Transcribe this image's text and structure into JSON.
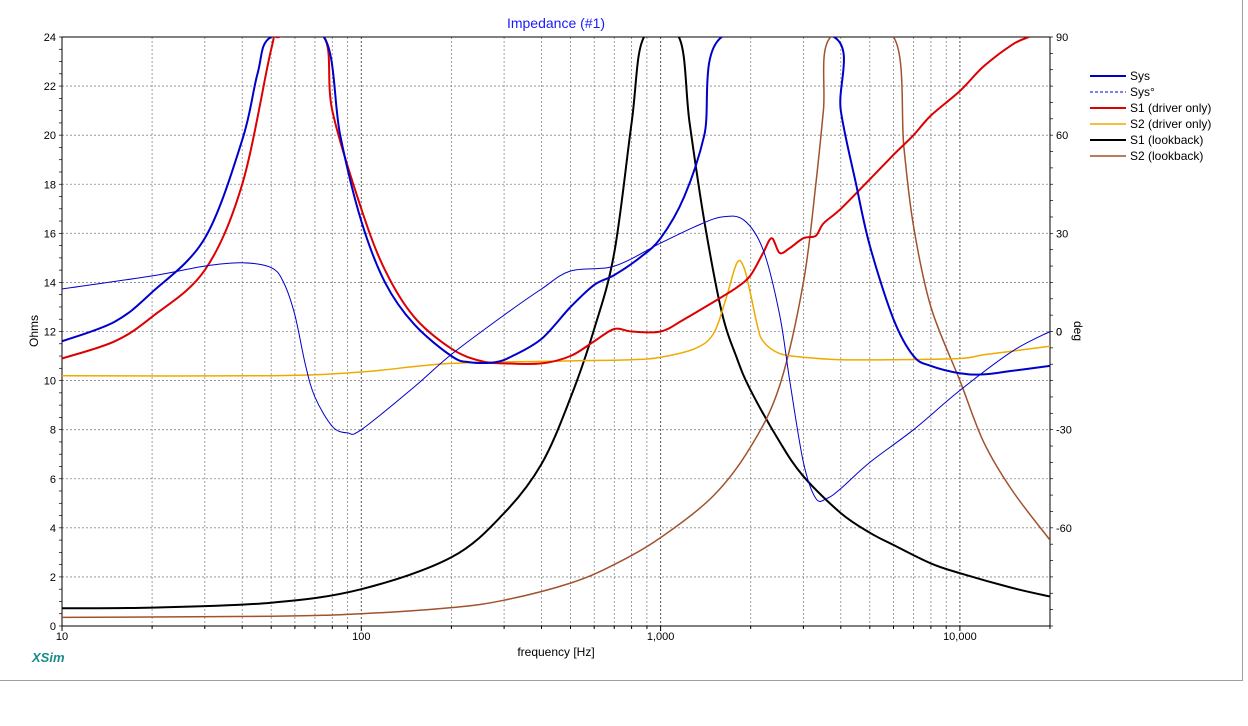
{
  "chart_data": {
    "type": "line",
    "title": "Impedance (#1)",
    "xlabel": "frequency [Hz]",
    "ylabel": "Ohms",
    "y2label": "deg",
    "xscale": "log",
    "xlim": [
      10,
      20000
    ],
    "ylim": [
      0,
      24
    ],
    "y2lim": [
      -90,
      90
    ],
    "x_ticks": [
      10,
      100,
      1000,
      10000
    ],
    "x_tick_labels": [
      "10",
      "100",
      "1,000",
      "10,000"
    ],
    "y_ticks": [
      0,
      2,
      4,
      6,
      8,
      10,
      12,
      14,
      16,
      18,
      20,
      22,
      24
    ],
    "y2_ticks": [
      -60,
      -30,
      0,
      30,
      60,
      90
    ],
    "grid": true,
    "legend_position": "right",
    "brand": "XSim",
    "series": [
      {
        "name": "Sys",
        "axis": "left",
        "color": "#0000cc",
        "width": 2,
        "dash": false,
        "points": [
          [
            10,
            11.6
          ],
          [
            15,
            12.4
          ],
          [
            20,
            13.6
          ],
          [
            30,
            15.8
          ],
          [
            40,
            19.8
          ],
          [
            45,
            22.5
          ],
          [
            50,
            24
          ],
          [
            75,
            24
          ],
          [
            85,
            20
          ],
          [
            100,
            16.5
          ],
          [
            120,
            14
          ],
          [
            150,
            12.3
          ],
          [
            200,
            11
          ],
          [
            230,
            10.75
          ],
          [
            280,
            10.75
          ],
          [
            320,
            11
          ],
          [
            400,
            11.7
          ],
          [
            500,
            13
          ],
          [
            600,
            13.9
          ],
          [
            700,
            14.3
          ],
          [
            850,
            15
          ],
          [
            1000,
            15.8
          ],
          [
            1200,
            17.5
          ],
          [
            1400,
            20
          ],
          [
            1600,
            24
          ],
          [
            3800,
            24
          ],
          [
            4000,
            21
          ],
          [
            4500,
            18
          ],
          [
            5000,
            15.5
          ],
          [
            6000,
            12.5
          ],
          [
            7000,
            11
          ],
          [
            8000,
            10.6
          ],
          [
            10000,
            10.3
          ],
          [
            12000,
            10.25
          ],
          [
            15000,
            10.4
          ],
          [
            20000,
            10.6
          ]
        ]
      },
      {
        "name": "Sys°",
        "axis": "right",
        "color": "#0000cc",
        "width": 1,
        "dash": false,
        "points": [
          [
            10,
            13
          ],
          [
            20,
            17
          ],
          [
            30,
            20
          ],
          [
            40,
            21
          ],
          [
            50,
            19.5
          ],
          [
            55,
            15
          ],
          [
            60,
            5
          ],
          [
            65,
            -10
          ],
          [
            70,
            -20
          ],
          [
            80,
            -29
          ],
          [
            90,
            -31
          ],
          [
            100,
            -30
          ],
          [
            150,
            -17
          ],
          [
            200,
            -7
          ],
          [
            300,
            5
          ],
          [
            400,
            13
          ],
          [
            500,
            18.5
          ],
          [
            700,
            20
          ],
          [
            1000,
            27
          ],
          [
            1300,
            32
          ],
          [
            1600,
            35
          ],
          [
            1900,
            34
          ],
          [
            2200,
            25
          ],
          [
            2500,
            5
          ],
          [
            2700,
            -15
          ],
          [
            3000,
            -40
          ],
          [
            3300,
            -51
          ],
          [
            3600,
            -51
          ],
          [
            4000,
            -48
          ],
          [
            5000,
            -40
          ],
          [
            7000,
            -30
          ],
          [
            10000,
            -18
          ],
          [
            15000,
            -6
          ],
          [
            20000,
            0
          ]
        ]
      },
      {
        "name": "S1 (driver only)",
        "axis": "left",
        "color": "#dd0000",
        "width": 2,
        "dash": false,
        "points": [
          [
            10,
            10.9
          ],
          [
            15,
            11.6
          ],
          [
            20,
            12.6
          ],
          [
            30,
            14.5
          ],
          [
            40,
            18
          ],
          [
            50,
            23.5
          ],
          [
            53,
            24
          ],
          [
            75,
            24
          ],
          [
            80,
            21
          ],
          [
            100,
            17
          ],
          [
            120,
            14.5
          ],
          [
            150,
            12.6
          ],
          [
            200,
            11.3
          ],
          [
            250,
            10.8
          ],
          [
            300,
            10.7
          ],
          [
            400,
            10.7
          ],
          [
            500,
            11
          ],
          [
            600,
            11.6
          ],
          [
            700,
            12.1
          ],
          [
            800,
            12
          ],
          [
            1000,
            12
          ],
          [
            1200,
            12.5
          ],
          [
            1500,
            13.2
          ],
          [
            1800,
            13.8
          ],
          [
            2000,
            14.3
          ],
          [
            2200,
            15.2
          ],
          [
            2350,
            15.8
          ],
          [
            2500,
            15.2
          ],
          [
            2700,
            15.4
          ],
          [
            3000,
            15.8
          ],
          [
            3300,
            15.9
          ],
          [
            3500,
            16.4
          ],
          [
            4000,
            17
          ],
          [
            5000,
            18.2
          ],
          [
            6000,
            19.2
          ],
          [
            7000,
            20
          ],
          [
            8000,
            20.8
          ],
          [
            10000,
            21.8
          ],
          [
            12000,
            22.8
          ],
          [
            15000,
            23.7
          ],
          [
            17000,
            24
          ]
        ]
      },
      {
        "name": "S2 (driver only)",
        "axis": "left",
        "color": "#eeaa00",
        "width": 1.5,
        "dash": false,
        "points": [
          [
            10,
            10.2
          ],
          [
            50,
            10.2
          ],
          [
            100,
            10.35
          ],
          [
            200,
            10.7
          ],
          [
            500,
            10.8
          ],
          [
            800,
            10.85
          ],
          [
            1000,
            10.95
          ],
          [
            1300,
            11.3
          ],
          [
            1500,
            11.9
          ],
          [
            1650,
            13.3
          ],
          [
            1800,
            14.8
          ],
          [
            1900,
            14.6
          ],
          [
            2000,
            13.5
          ],
          [
            2100,
            12.3
          ],
          [
            2200,
            11.6
          ],
          [
            2500,
            11.1
          ],
          [
            3000,
            10.95
          ],
          [
            4000,
            10.85
          ],
          [
            6000,
            10.85
          ],
          [
            10000,
            10.9
          ],
          [
            12000,
            11.05
          ],
          [
            15000,
            11.2
          ],
          [
            20000,
            11.4
          ]
        ]
      },
      {
        "name": "S1 (lookback)",
        "axis": "left",
        "color": "#000000",
        "width": 2,
        "dash": false,
        "points": [
          [
            10,
            0.72
          ],
          [
            20,
            0.75
          ],
          [
            50,
            0.95
          ],
          [
            100,
            1.5
          ],
          [
            200,
            2.8
          ],
          [
            300,
            4.6
          ],
          [
            400,
            6.6
          ],
          [
            500,
            9.3
          ],
          [
            600,
            12.1
          ],
          [
            700,
            15.2
          ],
          [
            800,
            20.5
          ],
          [
            880,
            24
          ],
          [
            1150,
            24
          ],
          [
            1250,
            20.5
          ],
          [
            1400,
            16.5
          ],
          [
            1600,
            12.8
          ],
          [
            1800,
            10.9
          ],
          [
            2000,
            9.6
          ],
          [
            2500,
            7.5
          ],
          [
            3000,
            6.1
          ],
          [
            4000,
            4.6
          ],
          [
            5000,
            3.8
          ],
          [
            6000,
            3.3
          ],
          [
            8000,
            2.55
          ],
          [
            10000,
            2.15
          ],
          [
            15000,
            1.55
          ],
          [
            20000,
            1.2
          ]
        ]
      },
      {
        "name": "S2 (lookback)",
        "axis": "left",
        "color": "#a0522d",
        "width": 1.5,
        "dash": false,
        "points": [
          [
            10,
            0.35
          ],
          [
            50,
            0.4
          ],
          [
            100,
            0.5
          ],
          [
            200,
            0.75
          ],
          [
            300,
            1.05
          ],
          [
            500,
            1.75
          ],
          [
            700,
            2.5
          ],
          [
            1000,
            3.6
          ],
          [
            1500,
            5.3
          ],
          [
            2000,
            7.3
          ],
          [
            2500,
            9.8
          ],
          [
            3000,
            14
          ],
          [
            3300,
            18
          ],
          [
            3500,
            21
          ],
          [
            3700,
            24
          ],
          [
            6000,
            24
          ],
          [
            6500,
            19.5
          ],
          [
            7000,
            16.3
          ],
          [
            8000,
            13
          ],
          [
            10000,
            10
          ],
          [
            12000,
            7.5
          ],
          [
            15000,
            5.5
          ],
          [
            20000,
            3.5
          ]
        ]
      }
    ]
  }
}
